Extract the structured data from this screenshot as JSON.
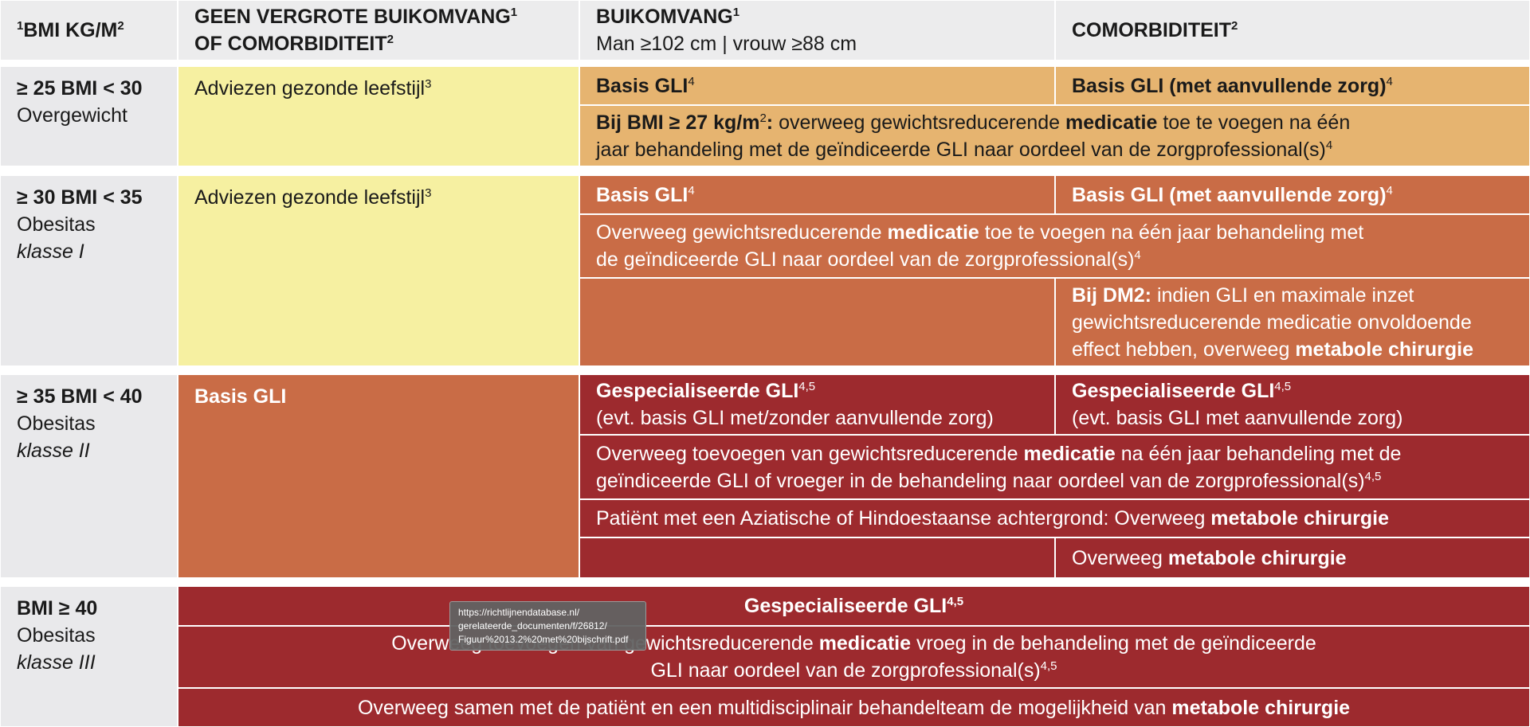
{
  "header": {
    "bmi": [
      "1",
      "BMI KG/M",
      "2"
    ],
    "geen": [
      "GEEN VERGROTE BUIKOMVANG",
      "1",
      "OF COMORBIDITEIT",
      "2"
    ],
    "buik": [
      "BUIKOMVANG",
      "1",
      "Man ≥102 cm | vrouw ≥88 cm"
    ],
    "comor": [
      "COMORBIDITEIT",
      "2"
    ]
  },
  "rows": [
    {
      "label": [
        "≥ 25 BMI < 30",
        "Overgewicht"
      ],
      "cells": [
        [
          "Adviezen gezonde leefstijl",
          "3"
        ],
        [
          "Basis GLI",
          "4"
        ],
        [
          "Basis GLI (met aanvullende zorg)",
          "4"
        ],
        [
          "Bij BMI ≥ 27 kg/m",
          "2",
          ":",
          "overweeg gewichtsreducerende",
          "medicatie",
          "toe te voegen na één",
          "jaar behandeling met de geïndiceerde GLI naar oordeel van de zorgprofessional(s)",
          "4"
        ]
      ]
    },
    {
      "label": [
        "≥ 30 BMI < 35",
        "Obesitas",
        "klasse I"
      ],
      "cells": [
        [
          "Adviezen gezonde leefstijl",
          "3"
        ],
        [
          "Basis GLI",
          "4"
        ],
        [
          "Basis GLI (met aanvullende zorg)",
          "4"
        ],
        [
          "Overweeg gewichtsreducerende",
          "medicatie",
          "toe te voegen na één jaar behandeling met",
          "de geïndiceerde GLI naar oordeel van de zorgprofessional(s)",
          "4"
        ],
        [
          "Bij DM2:",
          "indien GLI en maximale inzet",
          "gewichtsreducerende medicatie onvoldoende",
          "effect hebben, overweeg",
          "metabole chirurgie"
        ]
      ]
    },
    {
      "label": [
        "≥ 35 BMI < 40",
        "Obesitas",
        "klasse II"
      ],
      "cells": [
        [
          "Basis GLI"
        ],
        [
          "Gespecialiseerde GLI",
          "4,5",
          "(evt. basis GLI met/zonder aanvullende zorg)"
        ],
        [
          "Gespecialiseerde GLI",
          "4,5",
          "(evt. basis GLI met aanvullende zorg)"
        ],
        [
          "Overweeg toevoegen van gewichtsreducerende",
          "medicatie",
          "na één jaar behandeling met de",
          "geïndiceerde GLI of vroeger in de behandeling naar oordeel van de zorgprofessional(s)",
          "4,5"
        ],
        [
          "Patiënt met een Aziatische of Hindoestaanse achtergrond: Overweeg",
          "metabole chirurgie"
        ],
        [
          "Overweeg",
          "metabole chirurgie"
        ]
      ]
    },
    {
      "label": [
        "BMI ≥ 40",
        "Obesitas",
        "klasse III"
      ],
      "cells": [
        [
          "Gespecialiseerde GLI",
          "4,5"
        ],
        [
          "Overweeg toevoegen van gewichtsreducerende",
          "medicatie",
          "vroeg in de behandeling met de geïndiceerde",
          "GLI naar oordeel van de zorgprofessional(s)",
          "4,5"
        ],
        [
          "Overweeg samen met de patiënt en een multidisciplinair behandelteam de mogelijkheid van",
          "metabole chirurgie"
        ]
      ]
    }
  ],
  "tooltip": [
    "https://richtlijnendatabase.nl/",
    "gerelateerde_documenten/f/26812/",
    "Figuur%2013.2%20met%20bijschrift.pdf"
  ]
}
